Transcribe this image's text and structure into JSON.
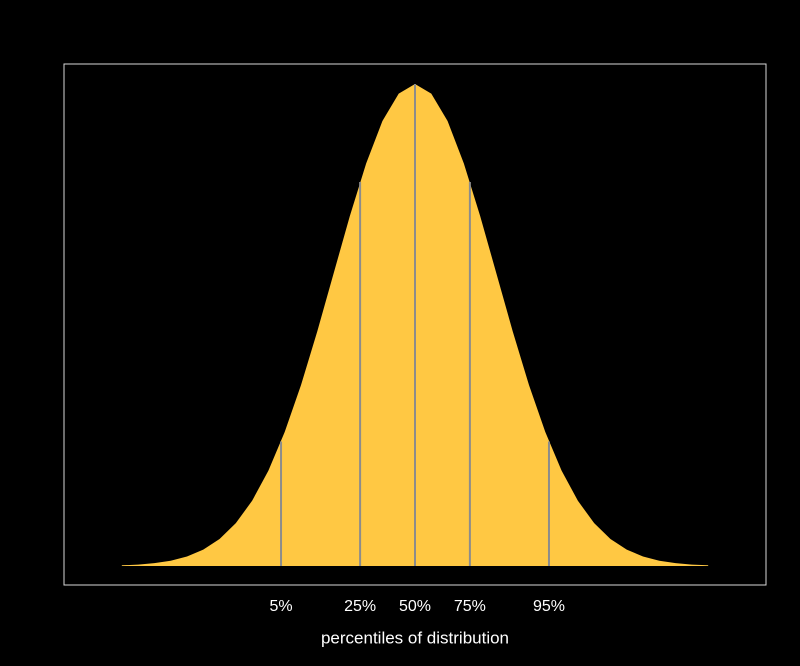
{
  "chart_data": {
    "type": "area",
    "xlabel": "percentiles of distribution",
    "x": [
      -3.6,
      -3.4,
      -3.2,
      -3.0,
      -2.8,
      -2.6,
      -2.4,
      -2.2,
      -2.0,
      -1.8,
      -1.6,
      -1.4,
      -1.2,
      -1.0,
      -0.8,
      -0.6,
      -0.4,
      -0.2,
      0,
      0.2,
      0.4,
      0.6,
      0.8,
      1.0,
      1.2,
      1.4,
      1.6,
      1.8,
      2.0,
      2.2,
      2.4,
      2.6,
      2.8,
      3.0,
      3.2,
      3.4,
      3.6
    ],
    "values": [
      0.0006,
      0.0012,
      0.0024,
      0.0044,
      0.0079,
      0.0136,
      0.0224,
      0.0355,
      0.054,
      0.079,
      0.1109,
      0.1497,
      0.1942,
      0.242,
      0.2897,
      0.3332,
      0.3683,
      0.391,
      0.3989,
      0.391,
      0.3683,
      0.3332,
      0.2897,
      0.242,
      0.1942,
      0.1497,
      0.1109,
      0.079,
      0.054,
      0.0355,
      0.0224,
      0.0136,
      0.0079,
      0.0044,
      0.0024,
      0.0012,
      0.0006
    ],
    "color": "#ffc843",
    "percentile_lines": {
      "color": "#8c8c8c",
      "values": [
        0.1031,
        0.3178,
        0.3989,
        0.3178,
        0.1031
      ]
    },
    "xlim": [
      -4.31,
      4.31
    ],
    "ylim": [
      -0.0157,
      0.4155
    ],
    "xticks": [
      {
        "value": -1.645,
        "label": "5%"
      },
      {
        "value": -0.674,
        "label": "25%"
      },
      {
        "value": 0,
        "label": "50%"
      },
      {
        "value": 0.674,
        "label": "75%"
      },
      {
        "value": 1.645,
        "label": "95%"
      }
    ],
    "frame_color": "#d9d9d9"
  }
}
